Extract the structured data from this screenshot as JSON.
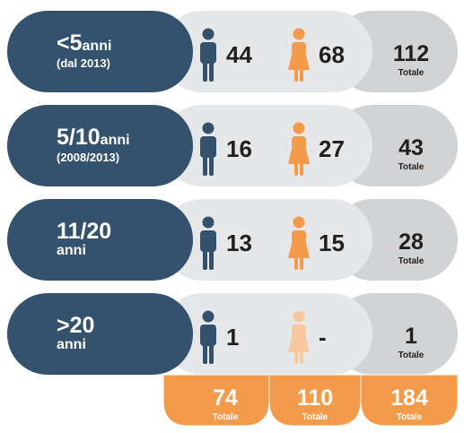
{
  "rows": [
    {
      "label": "<5",
      "unit": "anni",
      "sub": "(dal 2013)",
      "male": 44,
      "female": 68,
      "total": 112,
      "total_label": "Totale"
    },
    {
      "label": "5/10",
      "unit": "anni",
      "sub": "(2008/2013)",
      "male": 16,
      "female": 27,
      "total": 43,
      "total_label": "Totale"
    },
    {
      "label": "11/20",
      "unit": "anni",
      "male": 13,
      "female": 15,
      "total": 28,
      "total_label": "Totale"
    },
    {
      "label": ">20",
      "unit": "anni",
      "male": 1,
      "female": "-",
      "total": 1,
      "total_label": "Totale"
    }
  ],
  "footer": [
    {
      "value": 74,
      "label": "Totale"
    },
    {
      "value": 110,
      "label": "Totale"
    },
    {
      "value": 184,
      "label": "Totale"
    }
  ]
}
